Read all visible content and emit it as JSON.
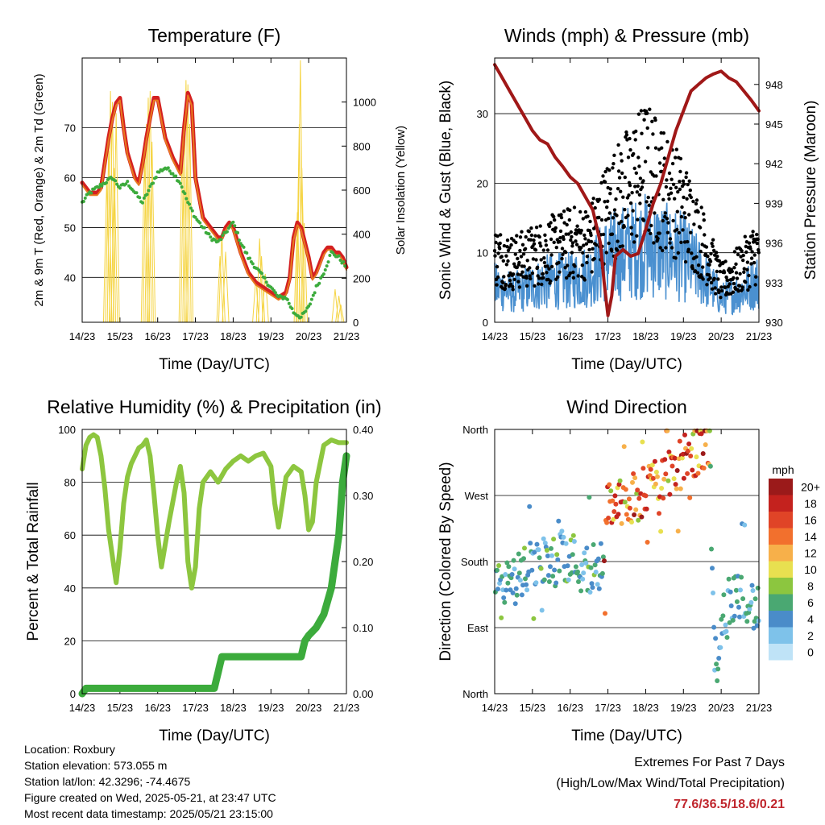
{
  "footer": {
    "location": "Location: Roxbury",
    "elevation": "Station elevation: 573.055 m",
    "latlon": "Station lat/lon: 42.3296; -74.4675",
    "created": "Figure created on Wed, 2025-05-21, at 23:47 UTC",
    "recent": "Most recent data timestamp: 2025/05/21 23:15:00",
    "extremes_title": "Extremes For Past 7 Days",
    "extremes_sub": "(High/Low/Max Wind/Total Precipitation)",
    "extremes_values": "77.6/36.5/18.6/0.21"
  },
  "chart_data": [
    {
      "id": "temperature",
      "type": "line",
      "title": "Temperature (F)",
      "xlabel": "Time (Day/UTC)",
      "ylabel": "2m & 9m T (Red, Orange) & 2m Td (Green)",
      "ylabel_right": "Solar Insolation (Yellow)",
      "x_ticks": [
        "14/23",
        "15/23",
        "16/23",
        "17/23",
        "18/23",
        "19/23",
        "20/23",
        "21/23"
      ],
      "xlim": [
        0,
        7
      ],
      "ylim": [
        31,
        84
      ],
      "y_ticks": [
        40,
        50,
        60,
        70
      ],
      "ylim_right": [
        0,
        1200
      ],
      "y_ticks_right": [
        0,
        200,
        400,
        600,
        800,
        1000
      ],
      "series": [
        {
          "color": "#d42020",
          "x": [
            0,
            0.1,
            0.2,
            0.3,
            0.4,
            0.5,
            0.6,
            0.7,
            0.8,
            0.9,
            1.0,
            1.1,
            1.2,
            1.4,
            1.5,
            1.6,
            1.7,
            1.8,
            1.9,
            2.0,
            2.1,
            2.2,
            2.4,
            2.6,
            2.7,
            2.8,
            2.9,
            3.0,
            3.1,
            3.2,
            3.4,
            3.5,
            3.6,
            3.7,
            3.8,
            3.9,
            4.0,
            4.2,
            4.4,
            4.5,
            4.6,
            4.8,
            5.0,
            5.2,
            5.4,
            5.5,
            5.6,
            5.7,
            5.8,
            5.9,
            6.0,
            6.1,
            6.2,
            6.3,
            6.4,
            6.5,
            6.6,
            6.7,
            6.8,
            6.9,
            7.0
          ],
          "y": [
            59,
            58,
            57,
            57,
            57,
            58,
            63,
            68,
            72,
            75,
            76,
            70,
            65,
            60,
            59,
            63,
            68,
            72,
            76,
            76,
            72,
            68,
            64,
            61,
            70,
            77,
            75,
            60,
            56,
            52,
            50,
            49,
            48,
            48,
            50,
            51,
            50,
            45,
            41,
            40,
            39,
            38,
            37,
            36,
            37,
            40,
            48,
            51,
            50,
            47,
            44,
            40,
            41,
            43,
            45,
            46,
            46,
            45,
            45,
            44,
            42
          ]
        },
        {
          "color": "#e8791f",
          "x": [
            0,
            0.1,
            0.2,
            0.3,
            0.4,
            0.5,
            0.6,
            0.7,
            0.8,
            0.9,
            1.0,
            1.1,
            1.2,
            1.4,
            1.5,
            1.6,
            1.7,
            1.8,
            1.9,
            2.0,
            2.1,
            2.2,
            2.4,
            2.6,
            2.7,
            2.8,
            2.9,
            3.0,
            3.1,
            3.2,
            3.4,
            3.5,
            3.6,
            3.7,
            3.8,
            3.9,
            4.0,
            4.2,
            4.4,
            4.5,
            4.6,
            4.8,
            5.0,
            5.2,
            5.4,
            5.5,
            5.6,
            5.7,
            5.8,
            5.9,
            6.0,
            6.1,
            6.2,
            6.3,
            6.4,
            6.5,
            6.6,
            6.7,
            6.8,
            6.9,
            7.0
          ],
          "y": [
            58.5,
            57.5,
            56.5,
            56.5,
            56.5,
            57.5,
            62.5,
            67.5,
            71.5,
            74.5,
            75.5,
            69.5,
            64.5,
            59.5,
            58.5,
            62.5,
            67.5,
            71.5,
            75.5,
            75.5,
            71.5,
            67.5,
            63.5,
            60.5,
            69.5,
            76.5,
            74.5,
            59.5,
            55.5,
            51.5,
            49.5,
            48.5,
            47.5,
            47.5,
            49.5,
            50.5,
            49.5,
            44.5,
            40.5,
            39.5,
            38.5,
            37.5,
            36.5,
            35.5,
            36.5,
            39.5,
            47.5,
            50.5,
            49.5,
            46.5,
            43.5,
            39.5,
            40.5,
            42.5,
            44.5,
            45.5,
            45.5,
            44.5,
            44.5,
            43.5,
            41.5
          ]
        },
        {
          "color": "#3cab3c",
          "x": [
            0,
            0.2,
            0.4,
            0.6,
            0.8,
            1.0,
            1.2,
            1.4,
            1.6,
            1.8,
            2.0,
            2.2,
            2.4,
            2.6,
            2.8,
            3.0,
            3.2,
            3.4,
            3.6,
            3.8,
            4.0,
            4.2,
            4.4,
            4.6,
            4.8,
            5.0,
            5.2,
            5.4,
            5.6,
            5.8,
            6.0,
            6.2,
            6.4,
            6.6,
            6.8,
            7.0
          ],
          "y": [
            55,
            57,
            58,
            59,
            60,
            58,
            59,
            57,
            55,
            58,
            61,
            62,
            61,
            59,
            55,
            52,
            50,
            48,
            47,
            49,
            51,
            47,
            44,
            42,
            40,
            38,
            36,
            36,
            33,
            32,
            34,
            38,
            41,
            45,
            44,
            42
          ]
        }
      ],
      "solar": {
        "color": "#f5d442",
        "peaks": [
          [
            0.65,
            650
          ],
          [
            0.7,
            780
          ],
          [
            0.75,
            1050
          ],
          [
            0.8,
            1000
          ],
          [
            0.85,
            700
          ],
          [
            0.9,
            950
          ],
          [
            1.65,
            750
          ],
          [
            1.7,
            900
          ],
          [
            1.75,
            1020
          ],
          [
            1.8,
            1050
          ],
          [
            1.85,
            820
          ],
          [
            2.65,
            800
          ],
          [
            2.7,
            950
          ],
          [
            2.75,
            1100
          ],
          [
            2.8,
            1080
          ],
          [
            2.85,
            900
          ],
          [
            3.65,
            300
          ],
          [
            3.7,
            400
          ],
          [
            3.8,
            320
          ],
          [
            4.6,
            200
          ],
          [
            4.7,
            380
          ],
          [
            4.75,
            300
          ],
          [
            4.85,
            220
          ],
          [
            5.7,
            500
          ],
          [
            5.75,
            900
          ],
          [
            5.78,
            1190
          ],
          [
            5.82,
            700
          ],
          [
            5.88,
            450
          ],
          [
            6.7,
            150
          ],
          [
            6.8,
            120
          ],
          [
            6.85,
            80
          ]
        ]
      }
    },
    {
      "id": "winds",
      "type": "scatter",
      "title": "Winds (mph) & Pressure (mb)",
      "xlabel": "Time (Day/UTC)",
      "ylabel": "Sonic Wind & Gust (Blue, Black)",
      "ylabel_right": "Station Pressure (Maroon)",
      "x_ticks": [
        "14/23",
        "15/23",
        "16/23",
        "17/23",
        "18/23",
        "19/23",
        "20/23",
        "21/23"
      ],
      "xlim": [
        0,
        7
      ],
      "ylim": [
        0,
        38
      ],
      "y_ticks": [
        0,
        10,
        20,
        30
      ],
      "ylim_right": [
        930,
        950
      ],
      "y_ticks_right": [
        930,
        933,
        936,
        939,
        942,
        945,
        948
      ],
      "wind_color": "#4a90d0",
      "gust_color": "#000000",
      "wind_env": {
        "x": [
          0,
          0.5,
          1,
          1.5,
          2,
          2.5,
          3,
          3.5,
          4,
          4.5,
          5,
          5.5,
          6,
          6.5,
          7
        ],
        "y": [
          6,
          5,
          6,
          7,
          7,
          8,
          11,
          12,
          13,
          12,
          11,
          8,
          4,
          5,
          7
        ]
      },
      "gust_env": {
        "x": [
          0,
          0.5,
          1,
          1.5,
          2,
          2.5,
          3,
          3.5,
          4,
          4.5,
          5,
          5.5,
          6,
          6.5,
          7
        ],
        "y": [
          10,
          9,
          10,
          11,
          12,
          12,
          17,
          20,
          23,
          20,
          17,
          12,
          6,
          8,
          11
        ]
      },
      "pressure": {
        "color": "#a01818",
        "x": [
          0,
          0.2,
          0.4,
          0.6,
          0.8,
          1.0,
          1.2,
          1.4,
          1.6,
          1.8,
          2.0,
          2.2,
          2.4,
          2.6,
          2.8,
          2.9,
          3.0,
          3.1,
          3.2,
          3.4,
          3.6,
          3.8,
          4.0,
          4.2,
          4.4,
          4.6,
          4.8,
          5.0,
          5.2,
          5.4,
          5.6,
          5.8,
          6.0,
          6.2,
          6.4,
          6.6,
          6.8,
          7.0
        ],
        "y": [
          949.5,
          948.5,
          947.5,
          946.5,
          945.5,
          944.5,
          943.8,
          943.5,
          942.5,
          941.8,
          941,
          940.5,
          939.5,
          938.5,
          936,
          933,
          930.5,
          932,
          935,
          935.5,
          935,
          935.2,
          937,
          939,
          940.5,
          942.5,
          944.5,
          946,
          947.5,
          948,
          948.5,
          948.8,
          949,
          948.5,
          948.2,
          947.5,
          946.8,
          946
        ]
      }
    },
    {
      "id": "humidity",
      "type": "line",
      "title": "Relative Humidity (%) & Precipitation (in)",
      "xlabel": "Time (Day/UTC)",
      "ylabel": "Percent & Total Rainfall",
      "x_ticks": [
        "14/23",
        "15/23",
        "16/23",
        "17/23",
        "18/23",
        "19/23",
        "20/23",
        "21/23"
      ],
      "xlim": [
        0,
        7
      ],
      "ylim": [
        0,
        100
      ],
      "y_ticks": [
        0,
        20,
        40,
        60,
        80,
        100
      ],
      "ylim_right": [
        0,
        0.4
      ],
      "y_ticks_right": [
        "0.00",
        "0.10",
        "0.20",
        "0.30",
        "0.40"
      ],
      "series": [
        {
          "color": "#8dc63f",
          "x": [
            0,
            0.1,
            0.2,
            0.3,
            0.4,
            0.5,
            0.6,
            0.7,
            0.8,
            0.9,
            1.0,
            1.1,
            1.2,
            1.3,
            1.5,
            1.6,
            1.7,
            1.8,
            1.9,
            2.0,
            2.1,
            2.3,
            2.5,
            2.6,
            2.7,
            2.8,
            2.9,
            3.0,
            3.1,
            3.2,
            3.4,
            3.6,
            3.8,
            4.0,
            4.2,
            4.4,
            4.6,
            4.8,
            5.0,
            5.1,
            5.2,
            5.3,
            5.4,
            5.6,
            5.8,
            5.9,
            6.0,
            6.1,
            6.2,
            6.4,
            6.6,
            6.8,
            7.0
          ],
          "y": [
            85,
            94,
            97,
            98,
            97,
            90,
            78,
            62,
            52,
            42,
            55,
            72,
            82,
            87,
            93,
            94,
            96,
            90,
            76,
            60,
            48,
            65,
            80,
            86,
            76,
            50,
            40,
            48,
            70,
            80,
            84,
            80,
            85,
            88,
            90,
            88,
            90,
            91,
            86,
            72,
            63,
            72,
            82,
            86,
            84,
            75,
            62,
            65,
            80,
            94,
            96,
            95,
            95
          ]
        },
        {
          "color": "#3cab3c",
          "x": [
            0,
            0.1,
            3.5,
            3.55,
            3.6,
            3.65,
            3.7,
            5.8,
            5.85,
            5.9,
            6.0,
            6.2,
            6.4,
            6.5,
            6.6,
            6.7,
            6.8,
            6.9,
            7.0
          ],
          "y": [
            0,
            2,
            2,
            5,
            8,
            11,
            14,
            14,
            17,
            20,
            22,
            25,
            30,
            35,
            40,
            50,
            60,
            80,
            90
          ]
        }
      ]
    },
    {
      "id": "direction",
      "type": "scatter",
      "title": "Wind Direction",
      "xlabel": "Time (Day/UTC)",
      "ylabel": "Direction (Colored By Speed)",
      "x_ticks": [
        "14/23",
        "15/23",
        "16/23",
        "17/23",
        "18/23",
        "19/23",
        "20/23",
        "21/23"
      ],
      "xlim": [
        0,
        7
      ],
      "ylim": [
        0,
        360
      ],
      "y_ticks": [
        "North",
        "East",
        "South",
        "West",
        "North"
      ],
      "legend": {
        "title": "mph",
        "labels": [
          "0",
          "2",
          "4",
          "6",
          "8",
          "10",
          "12",
          "14",
          "16",
          "18",
          "20+"
        ],
        "colors": [
          "#bfe3f7",
          "#7ec2ea",
          "#4a8cc9",
          "#4aa872",
          "#8cc63f",
          "#e8e050",
          "#f7b04a",
          "#f2702d",
          "#e04427",
          "#c4221e",
          "#9b1a1a"
        ]
      },
      "dir_center": {
        "x": [
          0,
          0.3,
          0.6,
          0.9,
          1.2,
          1.5,
          1.8,
          2.1,
          2.4,
          2.7,
          2.9,
          3.0,
          3.3,
          3.6,
          3.9,
          4.2,
          4.5,
          4.8,
          5.1,
          5.4,
          5.7,
          5.8,
          5.9,
          6.0,
          6.3,
          6.6,
          6.9,
          7.0
        ],
        "y": [
          150,
          140,
          160,
          170,
          180,
          175,
          190,
          185,
          165,
          180,
          170,
          260,
          260,
          265,
          270,
          290,
          300,
          310,
          320,
          330,
          345,
          60,
          30,
          110,
          130,
          140,
          115,
          110
        ]
      }
    }
  ]
}
